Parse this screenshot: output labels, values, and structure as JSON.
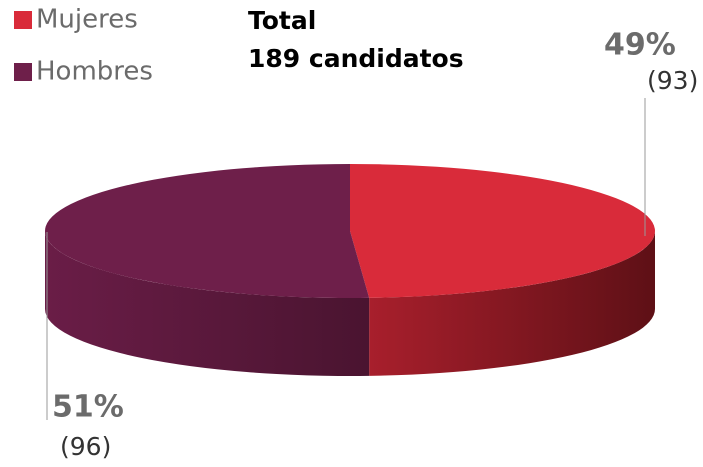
{
  "chart_data": {
    "type": "pie3d",
    "title": "Total",
    "subtitle": "189 candidatos",
    "categories": [
      "Mujeres",
      "Hombres"
    ],
    "values": [
      49,
      51
    ],
    "value_labels": [
      "49%",
      "51%"
    ],
    "counts": [
      "(93)",
      "(96)"
    ],
    "colors": [
      "#d92b3a",
      "#6e1f4a"
    ],
    "legend": "top-left"
  }
}
